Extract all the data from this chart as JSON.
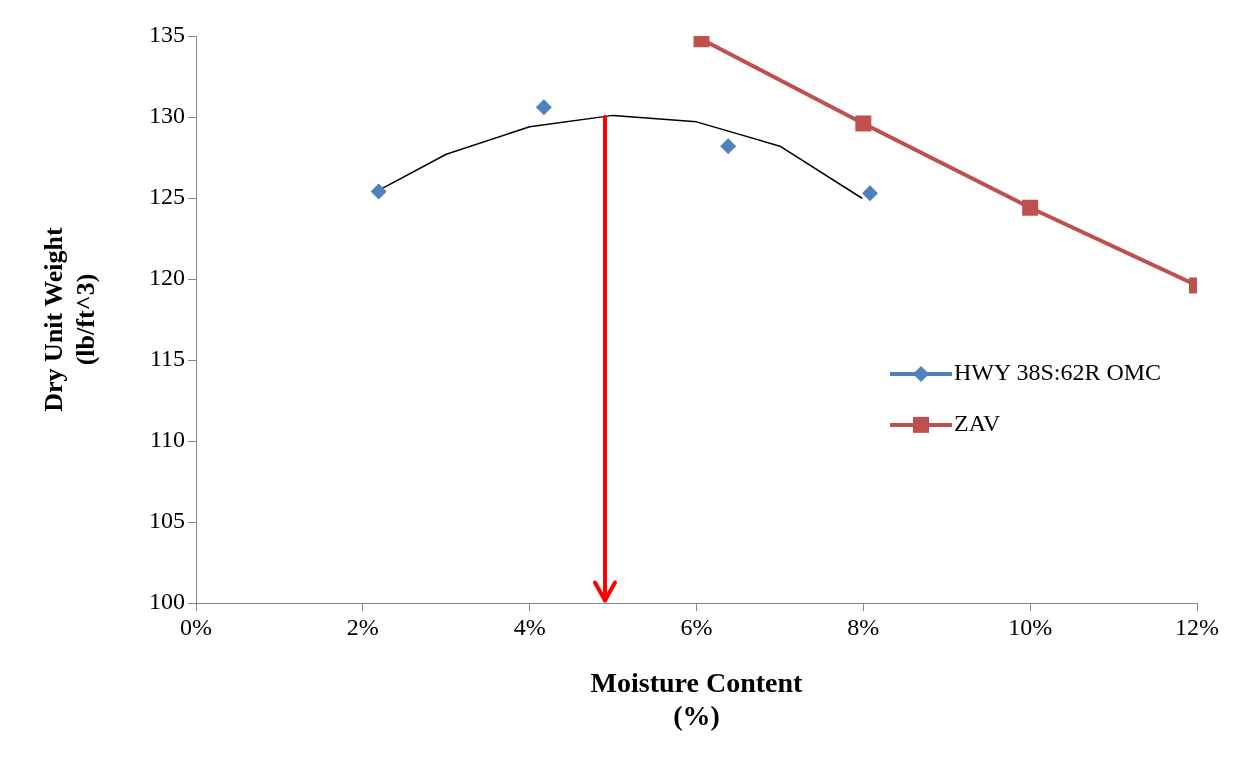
{
  "chart_data": {
    "type": "scatter",
    "xlabel": [
      "Moisture Content",
      "(%)"
    ],
    "ylabel": [
      "Dry Unit Weight",
      "(lb/ft^3)"
    ],
    "xlim": [
      0,
      12
    ],
    "ylim": [
      100,
      135
    ],
    "xticks": [
      {
        "value": 0,
        "label": "0%"
      },
      {
        "value": 2,
        "label": "2%"
      },
      {
        "value": 4,
        "label": "4%"
      },
      {
        "value": 6,
        "label": "6%"
      },
      {
        "value": 8,
        "label": "8%"
      },
      {
        "value": 10,
        "label": "10%"
      },
      {
        "value": 12,
        "label": "12%"
      }
    ],
    "yticks": [
      100,
      105,
      110,
      115,
      120,
      125,
      130,
      135
    ],
    "grid": false,
    "legend": "right",
    "ref_lines": [
      {
        "axis": "x",
        "value": 4.9,
        "color": "#ff0000"
      }
    ],
    "series": [
      {
        "name": "HWY 38S:62R OMC",
        "marker": "diamond",
        "color": "#4f81bd",
        "x": [
          2.19,
          4.17,
          6.38,
          8.08
        ],
        "values": [
          125.4,
          130.6,
          128.2,
          125.3
        ]
      },
      {
        "type": "line",
        "marker": "none",
        "color": "#000000",
        "x": [
          2.2,
          3,
          4,
          5,
          6,
          7,
          7.98
        ],
        "values": [
          125.5,
          127.7,
          129.4,
          130.1,
          129.7,
          128.2,
          125.0
        ]
      },
      {
        "name": "ZAV",
        "type": "line",
        "marker": "square",
        "color": "#c0504d",
        "x": [
          6.06,
          8,
          10,
          12
        ],
        "values": [
          134.8,
          129.6,
          124.4,
          119.6
        ]
      }
    ]
  }
}
